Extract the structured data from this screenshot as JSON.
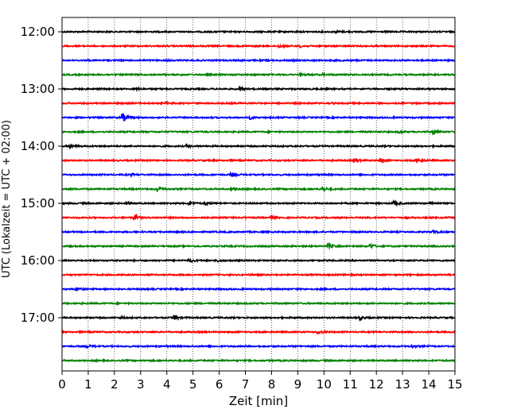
{
  "chart_data": {
    "type": "line",
    "title": "",
    "xlabel": "Zeit  [min]",
    "ylabel": "UTC (Lokalzeit = UTC + 02:00)",
    "xlim": [
      0,
      15
    ],
    "x_ticks": [
      0,
      1,
      2,
      3,
      4,
      5,
      6,
      7,
      8,
      9,
      10,
      11,
      12,
      13,
      14,
      15
    ],
    "y_ticks": [
      "12:00",
      "13:00",
      "14:00",
      "15:00",
      "16:00",
      "17:00"
    ],
    "grid": "vertical dotted at each minute",
    "color_cycle": [
      "#000000",
      "#ff0000",
      "#0000ff",
      "#008000"
    ],
    "series": [
      {
        "start": "12:00",
        "color": "#000000",
        "events": [
          [
            10.5,
            0.18
          ]
        ]
      },
      {
        "start": "12:15",
        "color": "#ff0000",
        "events": [
          [
            8.3,
            0.22
          ],
          [
            9.1,
            0.18
          ]
        ]
      },
      {
        "start": "12:30",
        "color": "#0000ff",
        "events": []
      },
      {
        "start": "12:45",
        "color": "#008000",
        "events": [
          [
            9.15,
            0.2
          ],
          [
            10.0,
            0.15
          ]
        ]
      },
      {
        "start": "13:00",
        "color": "#000000",
        "events": [
          [
            6.8,
            0.2
          ],
          [
            2.9,
            0.12
          ]
        ]
      },
      {
        "start": "13:15",
        "color": "#ff0000",
        "events": [
          [
            4.0,
            0.12
          ]
        ]
      },
      {
        "start": "13:30",
        "color": "#0000ff",
        "events": [
          [
            2.35,
            0.75
          ],
          [
            7.2,
            0.25
          ]
        ]
      },
      {
        "start": "13:45",
        "color": "#008000",
        "events": [
          [
            14.2,
            0.45
          ],
          [
            12.9,
            0.15
          ]
        ]
      },
      {
        "start": "14:00",
        "color": "#000000",
        "events": [
          [
            0.3,
            0.35
          ],
          [
            4.8,
            0.15
          ]
        ]
      },
      {
        "start": "14:15",
        "color": "#ff0000",
        "events": [
          [
            11.2,
            0.45
          ],
          [
            12.2,
            0.25
          ],
          [
            13.6,
            0.3
          ]
        ]
      },
      {
        "start": "14:30",
        "color": "#0000ff",
        "events": [
          [
            6.5,
            0.25
          ],
          [
            2.7,
            0.12
          ]
        ]
      },
      {
        "start": "14:45",
        "color": "#008000",
        "events": [
          [
            3.7,
            0.45
          ],
          [
            10.0,
            0.35
          ],
          [
            6.5,
            0.2
          ]
        ]
      },
      {
        "start": "15:00",
        "color": "#000000",
        "events": [
          [
            2.5,
            0.3
          ],
          [
            4.9,
            0.3
          ],
          [
            12.7,
            0.4
          ],
          [
            14.1,
            0.3
          ],
          [
            5.5,
            0.25
          ]
        ]
      },
      {
        "start": "15:15",
        "color": "#ff0000",
        "events": [
          [
            2.8,
            0.4
          ],
          [
            8.0,
            0.3
          ]
        ]
      },
      {
        "start": "15:30",
        "color": "#0000ff",
        "events": [
          [
            14.2,
            0.2
          ]
        ]
      },
      {
        "start": "15:45",
        "color": "#008000",
        "events": [
          [
            10.2,
            0.45
          ],
          [
            11.8,
            0.35
          ]
        ]
      },
      {
        "start": "16:00",
        "color": "#000000",
        "events": [
          [
            4.9,
            0.25
          ],
          [
            6.0,
            0.2
          ]
        ]
      },
      {
        "start": "16:15",
        "color": "#ff0000",
        "events": []
      },
      {
        "start": "16:30",
        "color": "#0000ff",
        "events": [
          [
            0.6,
            0.25
          ]
        ]
      },
      {
        "start": "16:45",
        "color": "#008000",
        "events": []
      },
      {
        "start": "17:00",
        "color": "#000000",
        "events": [
          [
            4.3,
            0.45
          ],
          [
            11.4,
            0.35
          ],
          [
            2.3,
            0.15
          ]
        ]
      },
      {
        "start": "17:15",
        "color": "#ff0000",
        "events": [
          [
            9.8,
            0.3
          ]
        ]
      },
      {
        "start": "17:30",
        "color": "#0000ff",
        "events": [
          [
            1.0,
            0.2
          ],
          [
            13.4,
            0.15
          ]
        ]
      },
      {
        "start": "17:45",
        "color": "#008000",
        "events": []
      }
    ]
  }
}
